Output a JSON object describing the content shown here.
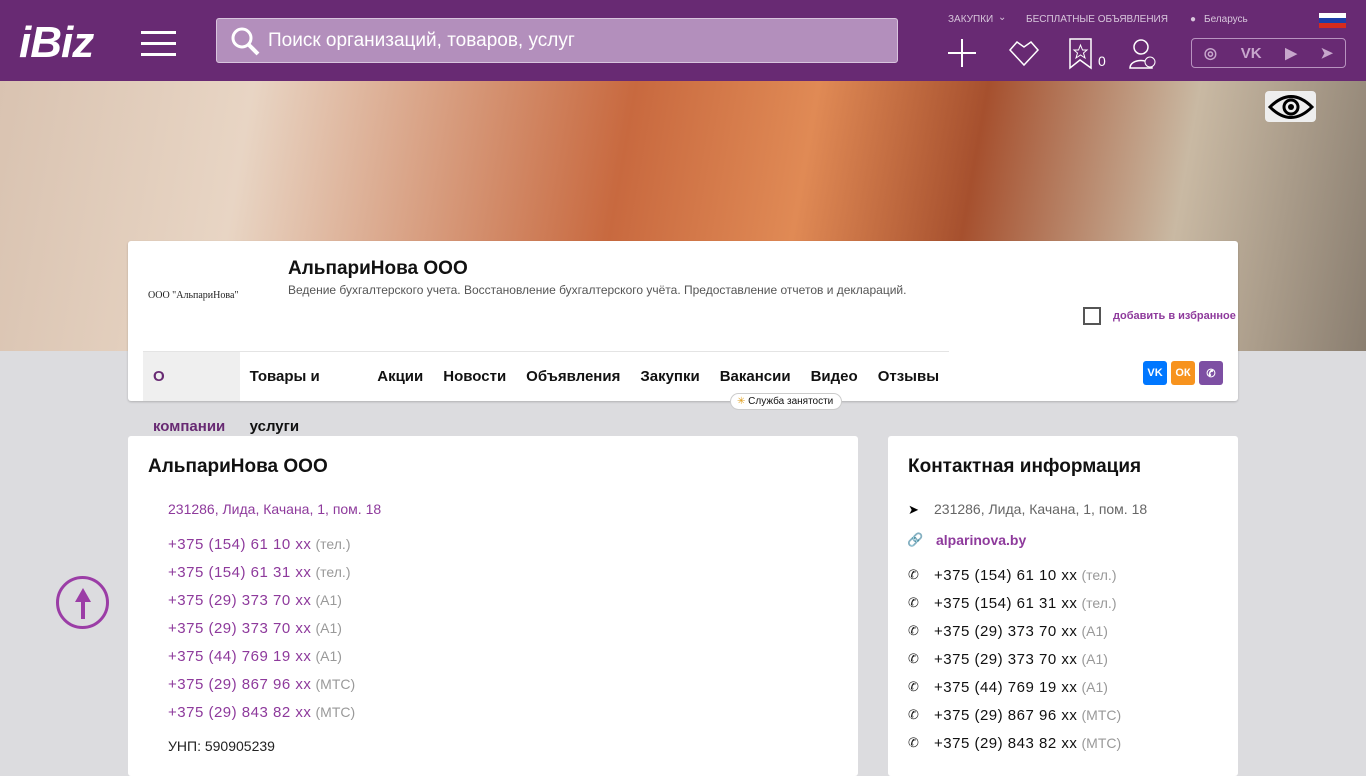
{
  "header": {
    "logo": "iBiz",
    "search_placeholder": "Поиск организаций, товаров, услуг",
    "links": {
      "purchases": "ЗАКУПКИ",
      "free_ads": "БЕСПЛАТНЫЕ ОБЪЯВЛЕНИЯ",
      "region": "Беларусь"
    },
    "favorites_count": "0",
    "social": [
      "instagram",
      "vk",
      "youtube",
      "telegram"
    ]
  },
  "company": {
    "logo_text": "ООО \"АльпариНова\"",
    "name": "АльпариНова ООО",
    "description": "Ведение бухгалтерского учета. Восстановление бухгалтерского учёта. Предоставление отчетов и деклараций.",
    "add_favorite": "добавить в избранное",
    "tabs": [
      "О компании",
      "Товары и услуги",
      "Акции",
      "Новости",
      "Объявления",
      "Закупки",
      "Вакансии",
      "Видео",
      "Отзывы"
    ],
    "tooltip": "Служба занятости",
    "share": [
      "vk",
      "ok",
      "viber"
    ]
  },
  "about": {
    "title": "АльпариНова ООО",
    "address": "231286, Лида, Качана, 1, пом. 18",
    "unp": "УНП: 590905239"
  },
  "phones": [
    {
      "number": "+375 (154) 61 10 xx",
      "type": "(тел.)"
    },
    {
      "number": "+375 (154) 61 31 xx",
      "type": "(тел.)"
    },
    {
      "number": "+375 (29) 373 70 xx",
      "type": "(A1)"
    },
    {
      "number": "+375 (29) 373 70 xx",
      "type": "(A1)"
    },
    {
      "number": "+375 (44) 769 19 xx",
      "type": "(A1)"
    },
    {
      "number": "+375 (29) 867 96 xx",
      "type": "(МТС)"
    },
    {
      "number": "+375 (29) 843 82 xx",
      "type": "(МТС)"
    }
  ],
  "contacts": {
    "title": "Контактная информация",
    "address": "231286, Лида, Качана, 1, пом. 18",
    "website": "alparinova.by"
  },
  "colors": {
    "brand": "#682a73",
    "accent": "#8e3a9c"
  }
}
